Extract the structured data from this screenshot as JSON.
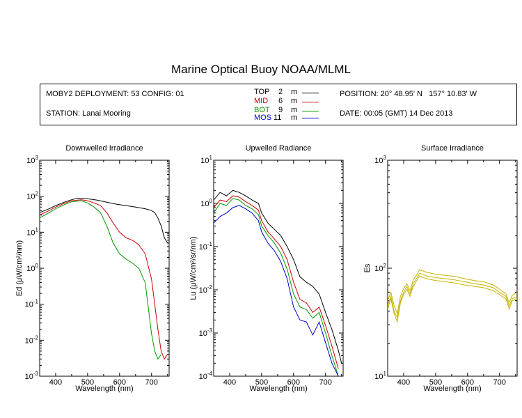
{
  "title": "Marine Optical Buoy NOAA/MLML",
  "info": {
    "deployment": "MOBY2 DEPLOYMENT: 53 CONFIG: 01",
    "station": "STATION: Lanai Mooring",
    "position": "POSITION: 20° 48.95' N   157° 10.83' W",
    "date": "DATE: 00:05 (GMT) 14 Dec 2013",
    "legend": [
      {
        "name": "TOP",
        "depth": "2",
        "unit": "m",
        "color": "#000000"
      },
      {
        "name": "MID",
        "depth": "6",
        "unit": "m",
        "color": "#cc0000"
      },
      {
        "name": "BOT",
        "depth": "9",
        "unit": "m",
        "color": "#009900"
      },
      {
        "name": "MOS",
        "depth": "11",
        "unit": "m",
        "color": "#0000cc"
      }
    ]
  },
  "chart_data": [
    {
      "type": "line",
      "title": "Downwelled Irradiance",
      "xlabel": "Wavelength (nm)",
      "ylabel": "Ed (μW/cm²/nm)",
      "xlim": [
        350,
        755
      ],
      "ylim": [
        0.001,
        1000
      ],
      "yscale": "log",
      "xticks": [
        400,
        500,
        600,
        700
      ],
      "ytick_exponents": [
        -3,
        -2,
        -1,
        0,
        1,
        2,
        3
      ],
      "series": [
        {
          "name": "TOP",
          "color": "#000000",
          "x": [
            350,
            380,
            400,
            430,
            450,
            470,
            500,
            530,
            560,
            590,
            620,
            650,
            680,
            700,
            710,
            720,
            730,
            740,
            750
          ],
          "y": [
            35,
            45,
            55,
            70,
            80,
            88,
            85,
            78,
            68,
            60,
            55,
            50,
            45,
            40,
            35,
            25,
            15,
            7,
            5
          ]
        },
        {
          "name": "MID",
          "color": "#cc0000",
          "x": [
            350,
            380,
            400,
            430,
            450,
            480,
            500,
            520,
            540,
            560,
            580,
            600,
            620,
            640,
            660,
            680,
            700,
            710,
            720,
            730,
            740,
            750
          ],
          "y": [
            30,
            40,
            50,
            65,
            75,
            80,
            75,
            65,
            55,
            35,
            18,
            10,
            7,
            6,
            4.5,
            2.5,
            0.5,
            0.1,
            0.02,
            0.005,
            0.003,
            0.004
          ]
        },
        {
          "name": "BOT",
          "color": "#009900",
          "x": [
            350,
            380,
            400,
            430,
            450,
            480,
            500,
            520,
            540,
            560,
            580,
            600,
            620,
            640,
            660,
            680,
            690,
            700,
            710,
            720,
            730
          ],
          "y": [
            25,
            35,
            45,
            60,
            70,
            75,
            65,
            50,
            35,
            15,
            5,
            2.5,
            1.8,
            1.4,
            1.0,
            0.4,
            0.08,
            0.015,
            0.005,
            0.003,
            0.004
          ]
        }
      ]
    },
    {
      "type": "line",
      "title": "Upwelled Radiance",
      "xlabel": "Wavelength (nm)",
      "ylabel": "Lu (μW/cm²/sr/nm)",
      "xlim": [
        350,
        755
      ],
      "ylim": [
        0.0001,
        10
      ],
      "yscale": "log",
      "xticks": [
        400,
        500,
        600,
        700
      ],
      "ytick_exponents": [
        -4,
        -3,
        -2,
        -1,
        0,
        1
      ],
      "series": [
        {
          "name": "TOP",
          "color": "#000000",
          "x": [
            350,
            370,
            390,
            410,
            430,
            450,
            470,
            490,
            500,
            520,
            540,
            560,
            580,
            600,
            620,
            640,
            660,
            680,
            700,
            720,
            740,
            750
          ],
          "y": [
            1.2,
            1.8,
            1.5,
            2.0,
            1.8,
            1.5,
            1.2,
            1.0,
            0.6,
            0.35,
            0.25,
            0.18,
            0.1,
            0.05,
            0.02,
            0.015,
            0.012,
            0.008,
            0.003,
            0.0012,
            0.0004,
            0.0002
          ]
        },
        {
          "name": "MID",
          "color": "#cc0000",
          "x": [
            350,
            370,
            390,
            410,
            430,
            450,
            470,
            490,
            500,
            520,
            540,
            560,
            580,
            600,
            620,
            640,
            660,
            680,
            700,
            720,
            740
          ],
          "y": [
            0.8,
            1.2,
            1.1,
            1.5,
            1.4,
            1.1,
            0.9,
            0.7,
            0.4,
            0.22,
            0.15,
            0.1,
            0.05,
            0.015,
            0.006,
            0.005,
            0.003,
            0.004,
            0.0015,
            0.0005,
            0.00015
          ]
        },
        {
          "name": "BOT",
          "color": "#009900",
          "x": [
            350,
            370,
            390,
            410,
            430,
            450,
            470,
            490,
            500,
            520,
            540,
            560,
            580,
            600,
            620,
            640,
            660,
            680,
            700,
            720,
            740
          ],
          "y": [
            0.6,
            1.0,
            0.9,
            1.3,
            1.2,
            0.9,
            0.75,
            0.55,
            0.3,
            0.18,
            0.12,
            0.07,
            0.03,
            0.008,
            0.004,
            0.0035,
            0.0022,
            0.003,
            0.001,
            0.0003,
            0.0001
          ]
        },
        {
          "name": "MOS",
          "color": "#0000cc",
          "x": [
            350,
            370,
            390,
            410,
            430,
            450,
            470,
            490,
            500,
            520,
            540,
            560,
            580,
            600,
            620,
            640,
            660,
            680,
            700,
            720,
            740
          ],
          "y": [
            0.35,
            0.5,
            0.6,
            0.8,
            0.9,
            0.75,
            0.6,
            0.4,
            0.22,
            0.12,
            0.08,
            0.045,
            0.018,
            0.004,
            0.002,
            0.0018,
            0.0009,
            0.0018,
            0.0006,
            0.0002,
            0.0001
          ]
        }
      ]
    },
    {
      "type": "line",
      "title": "Surface Irradiance",
      "xlabel": "Wavelength (nm)",
      "ylabel": "Es",
      "xlim": [
        350,
        755
      ],
      "ylim": [
        10,
        1000
      ],
      "yscale": "log",
      "xticks": [
        400,
        500,
        600,
        700
      ],
      "ytick_exponents": [
        1,
        2,
        3
      ],
      "series": [
        {
          "color": "#c8b400",
          "x": [
            350,
            360,
            370,
            380,
            390,
            400,
            410,
            420,
            430,
            440,
            450,
            470,
            500,
            530,
            560,
            590,
            620,
            650,
            680,
            700,
            720,
            730,
            740,
            755
          ],
          "y": [
            45,
            55,
            40,
            35,
            50,
            60,
            68,
            58,
            72,
            80,
            90,
            85,
            82,
            80,
            78,
            75,
            72,
            70,
            66,
            60,
            55,
            45,
            52,
            55
          ]
        },
        {
          "color": "#c8b400",
          "x": [
            350,
            360,
            370,
            380,
            390,
            400,
            410,
            420,
            430,
            440,
            450,
            470,
            500,
            530,
            560,
            590,
            620,
            650,
            680,
            700,
            720,
            730,
            740,
            755
          ],
          "y": [
            50,
            60,
            45,
            38,
            55,
            65,
            72,
            62,
            78,
            86,
            97,
            92,
            88,
            86,
            84,
            80,
            77,
            75,
            70,
            64,
            58,
            48,
            56,
            60
          ]
        },
        {
          "color": "#c8b400",
          "x": [
            350,
            360,
            370,
            380,
            390,
            400,
            410,
            420,
            430,
            440,
            450,
            470,
            500,
            530,
            560,
            590,
            620,
            650,
            680,
            700,
            720,
            730,
            740,
            755
          ],
          "y": [
            42,
            52,
            38,
            32,
            48,
            57,
            64,
            55,
            68,
            76,
            85,
            80,
            77,
            75,
            73,
            70,
            68,
            66,
            62,
            57,
            52,
            42,
            50,
            52
          ]
        }
      ]
    }
  ]
}
